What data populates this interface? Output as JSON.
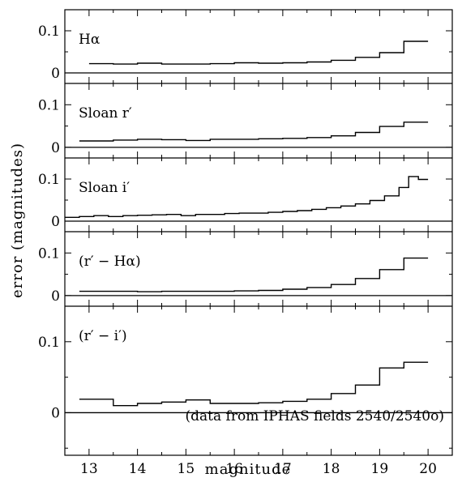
{
  "chart_data": {
    "type": "line",
    "style": "step",
    "xlabel": "magnitude",
    "ylabel": "error (magnitudes)",
    "xlim": [
      12.5,
      20.5
    ],
    "x_ticks": [
      "13",
      "14",
      "15",
      "16",
      "17",
      "18",
      "19",
      "20"
    ],
    "y_ticks": [
      "0",
      "0.1"
    ],
    "note": "(data from IPHAS fields 2540/2540o)",
    "panels": [
      {
        "label": "Hα",
        "ylim": [
          -0.025,
          0.15
        ],
        "x": [
          13.0,
          13.5,
          14.0,
          14.5,
          15.0,
          15.5,
          16.0,
          16.5,
          17.0,
          17.5,
          18.0,
          18.5,
          19.0,
          19.5,
          20.0
        ],
        "y": [
          0.022,
          0.021,
          0.023,
          0.021,
          0.021,
          0.022,
          0.024,
          0.023,
          0.024,
          0.026,
          0.03,
          0.037,
          0.048,
          0.075,
          0.075
        ]
      },
      {
        "label": "Sloan r′",
        "ylim": [
          -0.025,
          0.15
        ],
        "x": [
          12.8,
          13.5,
          14.0,
          14.5,
          15.0,
          15.5,
          16.0,
          16.5,
          17.0,
          17.5,
          18.0,
          18.5,
          19.0,
          19.5,
          20.0
        ],
        "y": [
          0.015,
          0.017,
          0.019,
          0.018,
          0.016,
          0.019,
          0.019,
          0.02,
          0.021,
          0.023,
          0.027,
          0.035,
          0.049,
          0.059,
          0.059
        ]
      },
      {
        "label": "Sloan i′",
        "ylim": [
          -0.025,
          0.15
        ],
        "x": [
          12.5,
          12.8,
          13.1,
          13.4,
          13.7,
          14.0,
          14.3,
          14.6,
          14.9,
          15.2,
          15.5,
          15.8,
          16.1,
          16.4,
          16.7,
          17.0,
          17.3,
          17.6,
          17.9,
          18.2,
          18.5,
          18.8,
          19.1,
          19.4,
          19.6,
          19.8,
          20.0
        ],
        "y": [
          0.009,
          0.011,
          0.013,
          0.011,
          0.013,
          0.014,
          0.015,
          0.016,
          0.013,
          0.016,
          0.016,
          0.018,
          0.019,
          0.019,
          0.021,
          0.023,
          0.025,
          0.028,
          0.032,
          0.036,
          0.041,
          0.049,
          0.06,
          0.08,
          0.106,
          0.099,
          0.099
        ]
      },
      {
        "label": "(r′ − Hα)",
        "ylim": [
          -0.025,
          0.15
        ],
        "x": [
          12.8,
          13.5,
          14.0,
          14.5,
          15.0,
          15.5,
          16.0,
          16.5,
          17.0,
          17.5,
          18.0,
          18.5,
          19.0,
          19.5,
          20.0
        ],
        "y": [
          0.01,
          0.01,
          0.009,
          0.01,
          0.01,
          0.01,
          0.011,
          0.012,
          0.015,
          0.019,
          0.026,
          0.04,
          0.061,
          0.088,
          0.088
        ]
      },
      {
        "label": "(r′ − i′)",
        "ylim": [
          -0.06,
          0.15
        ],
        "x": [
          12.8,
          13.5,
          14.0,
          14.5,
          15.0,
          15.5,
          16.0,
          16.5,
          17.0,
          17.5,
          18.0,
          18.5,
          19.0,
          19.5,
          20.0
        ],
        "y": [
          0.019,
          0.01,
          0.013,
          0.015,
          0.018,
          0.013,
          0.013,
          0.014,
          0.016,
          0.019,
          0.027,
          0.039,
          0.063,
          0.071,
          0.071
        ]
      }
    ]
  }
}
